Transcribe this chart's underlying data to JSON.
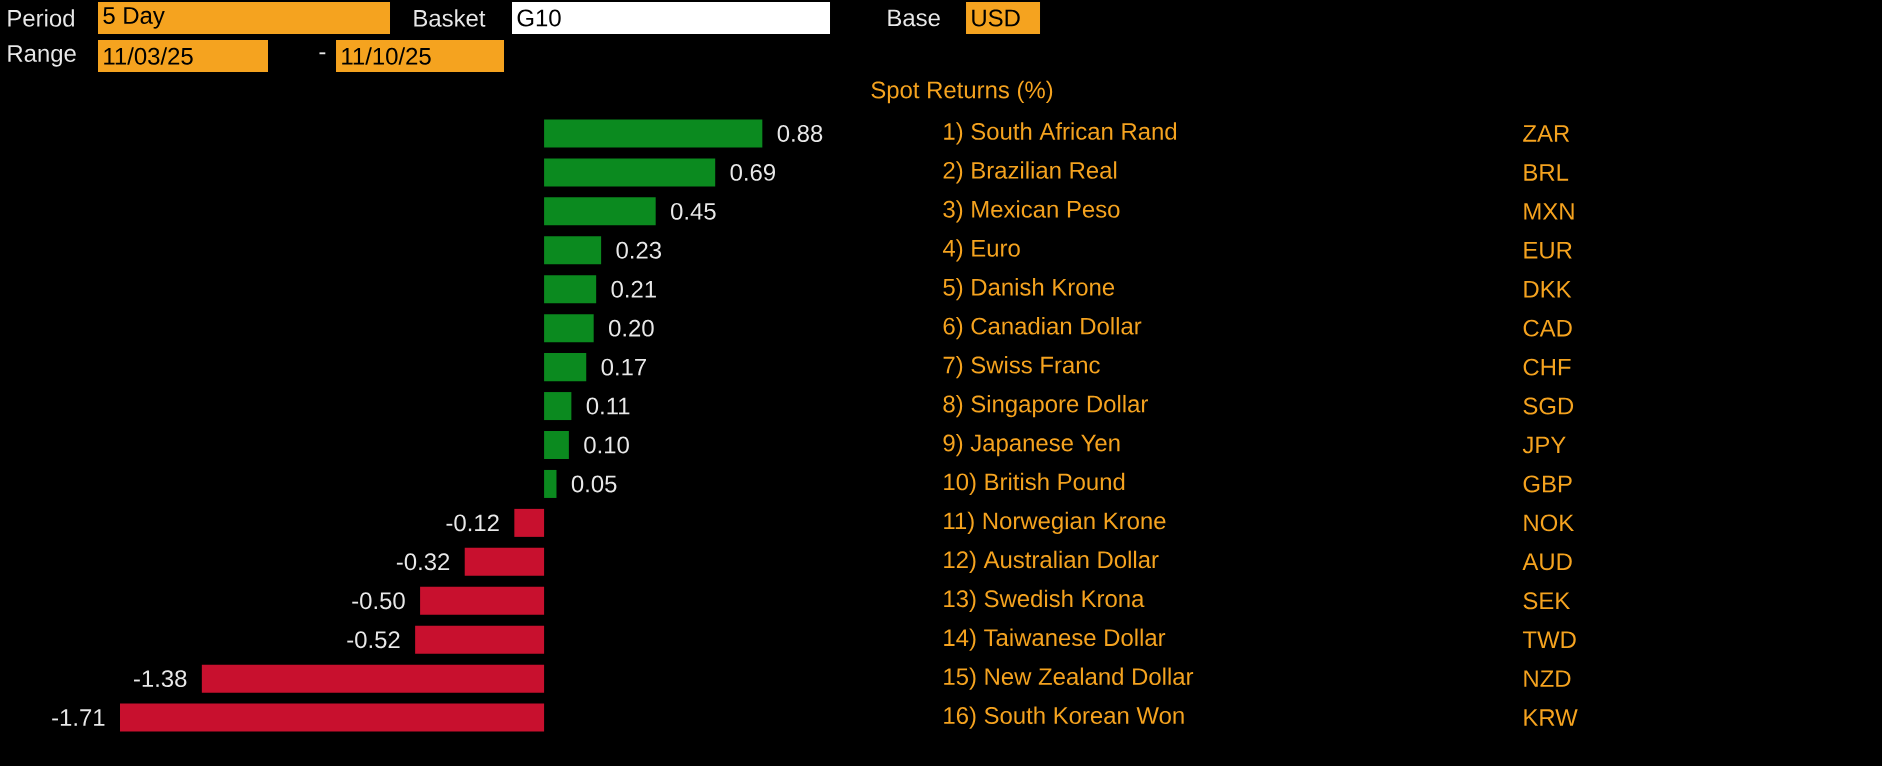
{
  "chart_data": {
    "type": "bar",
    "orientation": "horizontal",
    "title": "Spot Returns (%)",
    "categories": [
      "1) South African Rand",
      "2) Brazilian Real",
      "3) Mexican Peso",
      "4) Euro",
      "5) Danish Krone",
      "6) Canadian Dollar",
      "7) Swiss Franc",
      "8) Singapore Dollar",
      "9) Japanese Yen",
      "10) British Pound",
      "11) Norwegian Krone",
      "12) Australian Dollar",
      "13) Swedish Krona",
      "14) Taiwanese Dollar",
      "15) New Zealand Dollar",
      "16) South Korean Won"
    ],
    "y2_categories": [
      "ZAR",
      "BRL",
      "MXN",
      "EUR",
      "DKK",
      "CAD",
      "CHF",
      "SGD",
      "JPY",
      "GBP",
      "NOK",
      "AUD",
      "SEK",
      "TWD",
      "NZD",
      "KRW"
    ],
    "values": [
      0.88,
      0.69,
      0.45,
      0.23,
      0.21,
      0.2,
      0.17,
      0.11,
      0.1,
      0.05,
      -0.12,
      -0.32,
      -0.5,
      -0.52,
      -1.38,
      -1.71
    ],
    "value_labels": [
      "0.88",
      "0.69",
      "0.45",
      "0.23",
      "0.21",
      "0.20",
      "0.17",
      "0.11",
      "0.10",
      "0.05",
      "-0.12",
      "-0.32",
      "-0.50",
      "-0.52",
      "-1.38",
      "-1.71"
    ],
    "colors": [
      "#0b8a1f",
      "#0b8a1f",
      "#0b8a1f",
      "#0b8a1f",
      "#0b8a1f",
      "#0b8a1f",
      "#0b8a1f",
      "#0b8a1f",
      "#0b8a1f",
      "#0b8a1f",
      "#c8102e",
      "#c8102e",
      "#c8102e",
      "#c8102e",
      "#c8102e",
      "#c8102e"
    ],
    "annotations": [
      "Period",
      "5 Day",
      "Basket",
      "G10",
      "Base",
      "USD",
      "Range",
      "11/03/25",
      "-",
      "11/10/25"
    ]
  }
}
